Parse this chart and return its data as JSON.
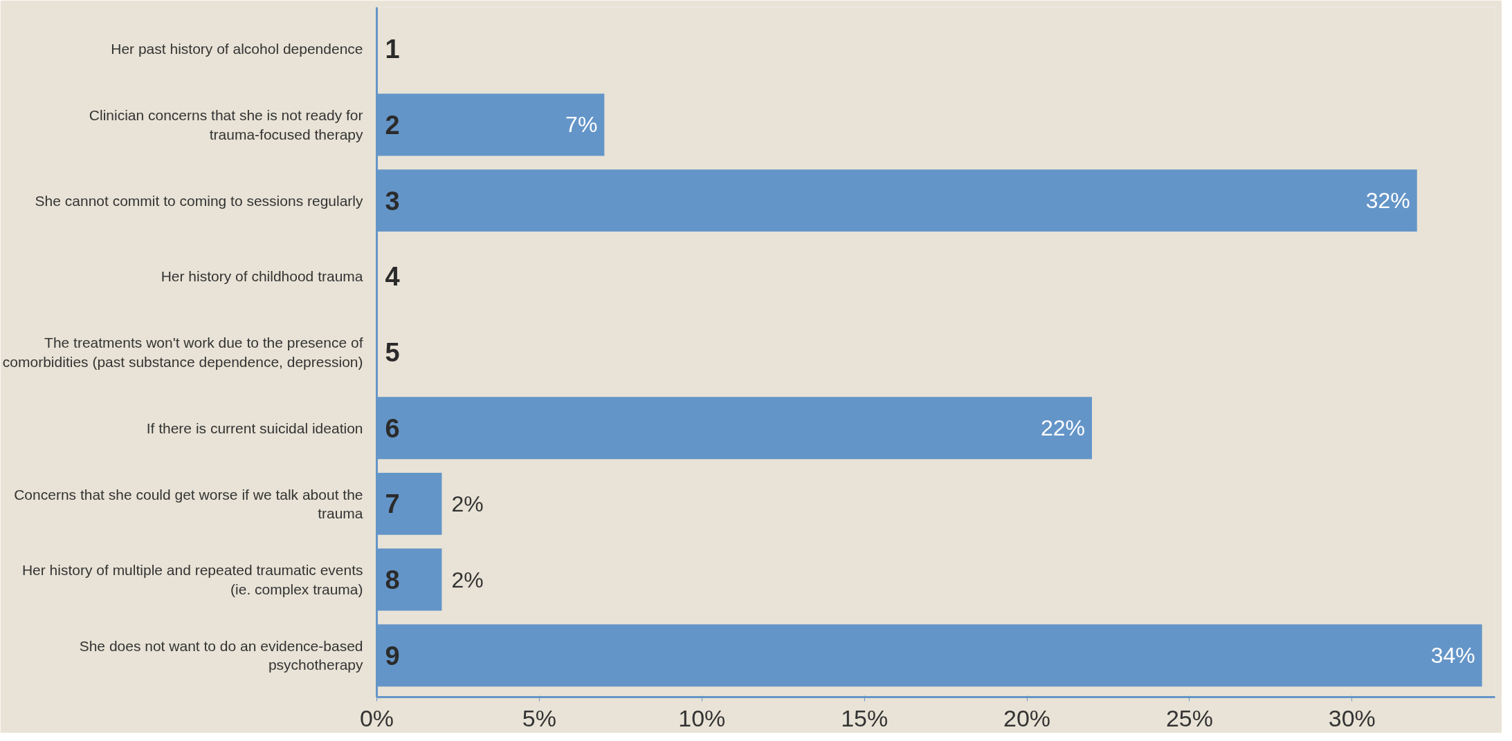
{
  "chart_data": {
    "type": "bar",
    "orientation": "horizontal",
    "categories": [
      "Her past history of alcohol dependence",
      "Clinician concerns that she is not ready for\ntrauma-focused therapy",
      "She cannot commit to coming to sessions regularly",
      "Her history of childhood trauma",
      "The treatments won't work due to the presence of\ncomorbidities (past substance dependence, depression)",
      "If there is current suicidal ideation",
      "Concerns that she could get worse if we talk about the\ntrauma",
      "Her history of multiple and repeated traumatic events\n(ie. complex trauma)",
      "She does not want to do an evidence-based\npsychotherapy"
    ],
    "values": [
      0,
      7,
      32,
      0,
      0,
      22,
      2,
      2,
      34
    ],
    "value_labels": [
      null,
      "7%",
      "32%",
      null,
      null,
      "22%",
      "2%",
      "2%",
      "34%"
    ],
    "color": "#6495c8",
    "xlim": [
      0,
      34.4
    ],
    "xticks": [
      {
        "value": 0,
        "label": "0%"
      },
      {
        "value": 5,
        "label": "5%"
      },
      {
        "value": 10,
        "label": "10%"
      },
      {
        "value": 15,
        "label": "15%"
      },
      {
        "value": 20,
        "label": "20%"
      },
      {
        "value": 25,
        "label": "25%"
      },
      {
        "value": 30,
        "label": "30%"
      }
    ],
    "annotations": [
      "1",
      "2",
      "3",
      "4",
      "5",
      "6",
      "7",
      "8",
      "9"
    ],
    "grid": false
  }
}
